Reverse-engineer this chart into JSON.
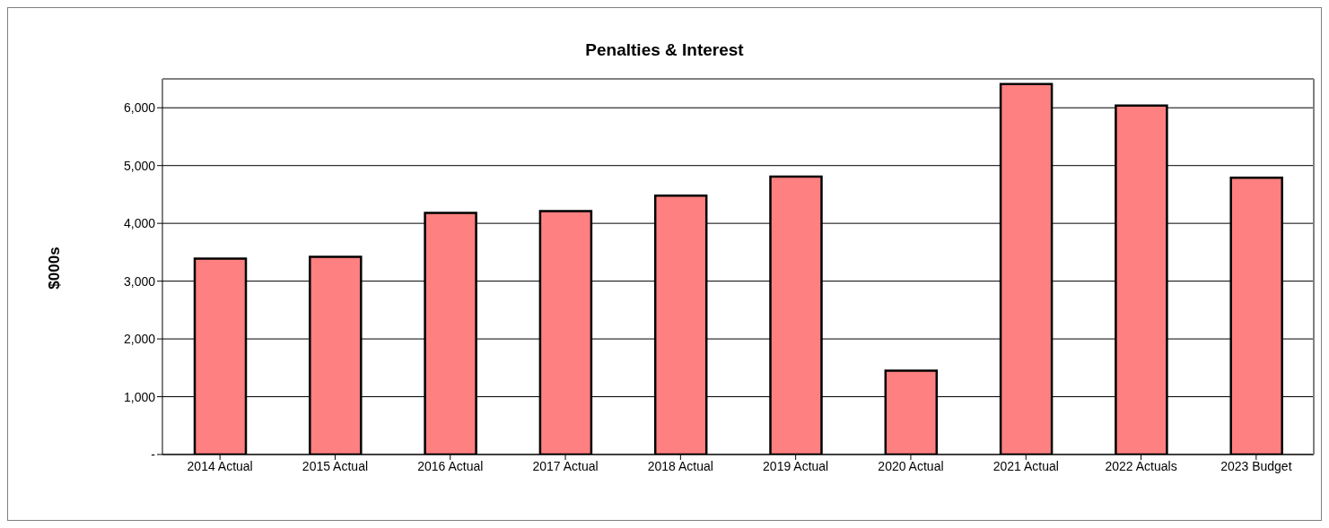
{
  "chart_data": {
    "type": "bar",
    "title": "Penalties & Interest",
    "ylabel": "$000s",
    "categories": [
      "2014 Actual",
      "2015 Actual",
      "2016 Actual",
      "2017 Actual",
      "2018 Actual",
      "2019 Actual",
      "2020 Actual",
      "2021 Actual",
      "2022 Actuals",
      "2023 Budget"
    ],
    "values": [
      3390,
      3420,
      4180,
      4210,
      4480,
      4810,
      1450,
      6410,
      6040,
      4790
    ],
    "color": "#ff8080",
    "ylim": [
      0,
      6500
    ],
    "yticks": [
      {
        "value": 0,
        "label": "-"
      },
      {
        "value": 1000,
        "label": "1,000"
      },
      {
        "value": 2000,
        "label": "2,000"
      },
      {
        "value": 3000,
        "label": "3,000"
      },
      {
        "value": 4000,
        "label": "4,000"
      },
      {
        "value": 5000,
        "label": "5,000"
      },
      {
        "value": 6000,
        "label": "6,000"
      }
    ],
    "grid": "y",
    "legend": false
  }
}
